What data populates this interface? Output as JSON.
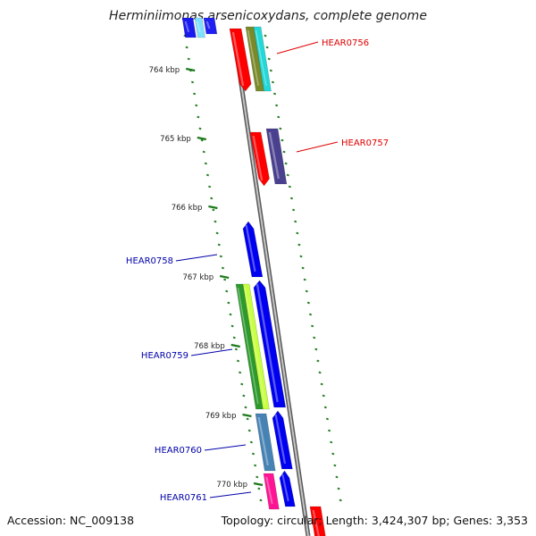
{
  "header": {
    "title": "Herminiimonas arsenicoxydans, complete genome"
  },
  "footer": {
    "accession": "Accession: NC_009138",
    "summary": "Topology: circular; Length: 3,424,307 bp; Genes: 3,353"
  },
  "ticks": [
    {
      "label": "764 kbp"
    },
    {
      "label": "765 kbp"
    },
    {
      "label": "766 kbp"
    },
    {
      "label": "767 kbp"
    },
    {
      "label": "768 kbp"
    },
    {
      "label": "769 kbp"
    },
    {
      "label": "770 kbp"
    }
  ],
  "gene_labels": [
    {
      "name": "HEAR0756",
      "color": "#e00000"
    },
    {
      "name": "HEAR0757",
      "color": "#e00000"
    },
    {
      "name": "HEAR0758",
      "color": "#0000aa"
    },
    {
      "name": "HEAR0759",
      "color": "#0000aa"
    },
    {
      "name": "HEAR0760",
      "color": "#0000aa"
    },
    {
      "name": "HEAR0761",
      "color": "#0000aa"
    }
  ],
  "colors": {
    "backbone": "#8c8c8c",
    "tick_marks": "#1e7a1e",
    "forward_label": "#e00000",
    "reverse_label": "#0000aa",
    "gene_red": "#ff0000",
    "gene_blue": "#0000f0",
    "gene_olive": "#7a8a2a",
    "gene_cyan": "#22d8d8",
    "gene_slate": "#4a4090",
    "gene_green": "#2e9a2e",
    "gene_lime": "#c8ff40",
    "gene_steel": "#4682b4",
    "gene_pink": "#ff1493"
  }
}
